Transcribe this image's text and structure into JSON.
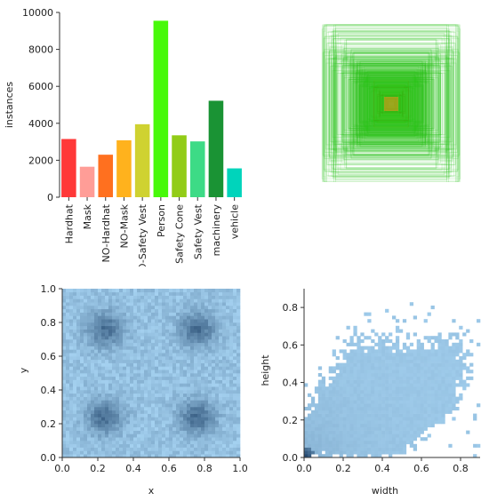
{
  "colors": {
    "axis": "#333333",
    "heat_low": "#a6d3f2",
    "heat_high": "#1b3f66",
    "scatter_fill": "#9ec8ee",
    "box_green": "#27c41b",
    "box_orange": "#e0941a"
  },
  "chart_data": [
    {
      "type": "bar",
      "categories": [
        "Hardhat",
        "Mask",
        "NO-Hardhat",
        "NO-Mask",
        "NO-Safety Vest",
        "Person",
        "Safety Cone",
        "Safety Vest",
        "machinery",
        "vehicle"
      ],
      "values": [
        3150,
        1650,
        2300,
        3080,
        3950,
        9550,
        3350,
        3020,
        5220,
        1560
      ],
      "colors": [
        "#ff3838",
        "#ff9d97",
        "#ff701f",
        "#ffb21d",
        "#cfd231",
        "#48f90a",
        "#92cc17",
        "#3ddb86",
        "#1a9334",
        "#00d4bb"
      ],
      "ylabel": "instances",
      "ylim": [
        0,
        10000
      ],
      "yticks": [
        0,
        2000,
        4000,
        6000,
        8000,
        10000
      ],
      "grid": false
    },
    {
      "type": "box-overlay",
      "description_source": "label box overlay",
      "axes_visible": false
    },
    {
      "type": "heatmap",
      "xlabel": "x",
      "ylabel": "y",
      "xlim": [
        0,
        1
      ],
      "ylim": [
        0,
        1
      ],
      "xticks": [
        "0.0",
        "0.2",
        "0.4",
        "0.6",
        "0.8",
        "1.0"
      ],
      "yticks": [
        "0.0",
        "0.2",
        "0.4",
        "0.6",
        "0.8",
        "1.0"
      ],
      "bins": 50,
      "hotspots": [
        [
          0.24,
          0.76
        ],
        [
          0.76,
          0.76
        ],
        [
          0.24,
          0.24
        ],
        [
          0.76,
          0.24
        ]
      ]
    },
    {
      "type": "heatmap",
      "xlabel": "width",
      "ylabel": "height",
      "xlim": [
        0,
        0.9
      ],
      "ylim": [
        0,
        0.9
      ],
      "xticks": [
        "0.0",
        "0.2",
        "0.4",
        "0.6",
        "0.8"
      ],
      "yticks": [
        "0.0",
        "0.2",
        "0.4",
        "0.6",
        "0.8"
      ],
      "bins": 50,
      "hotspots": [
        [
          0.02,
          0.03
        ]
      ]
    }
  ]
}
